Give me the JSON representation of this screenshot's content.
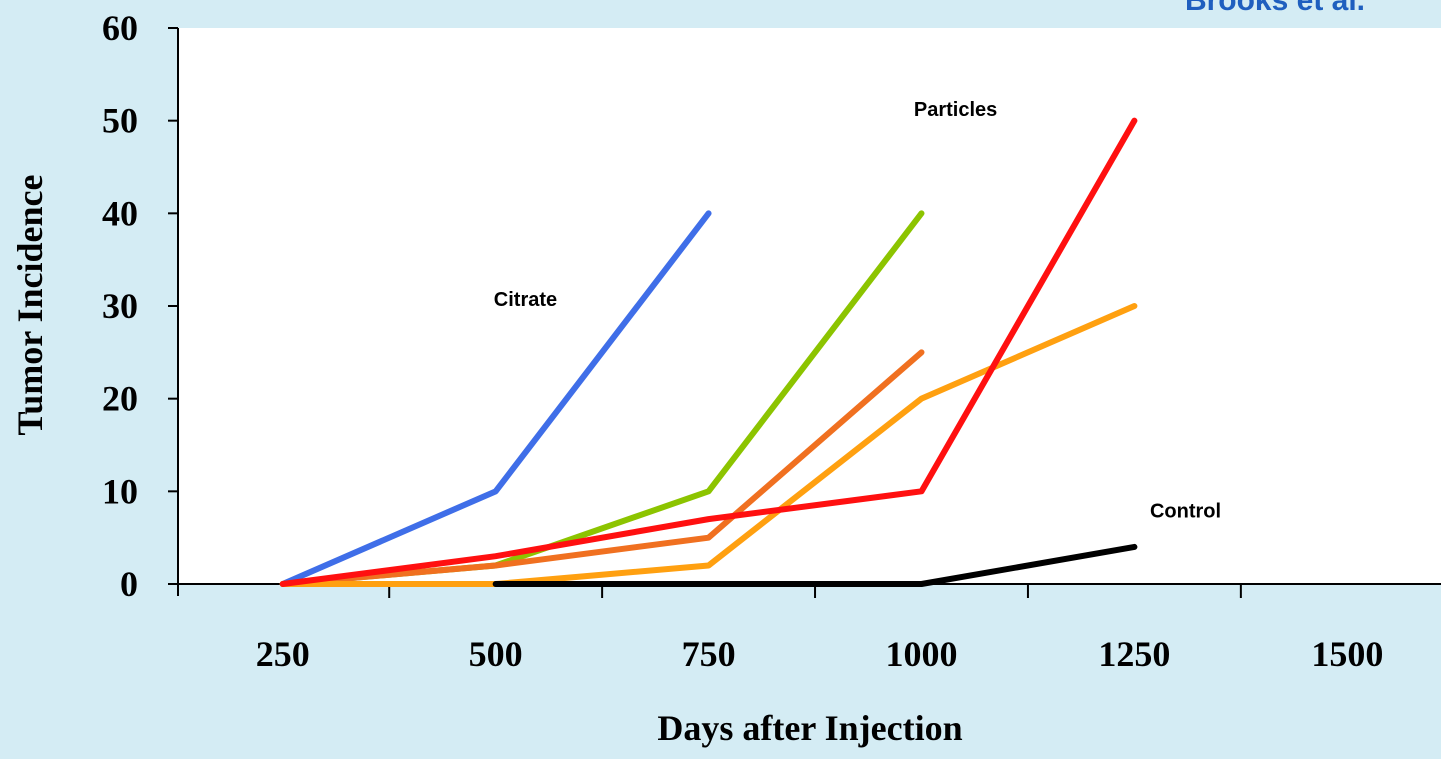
{
  "chart_data": {
    "type": "line",
    "source": "Brooks et al.",
    "xlabel": "Days after Injection",
    "ylabel": "Tumor Incidence",
    "annotations": [
      {
        "text": "Citrate",
        "x": 535,
        "y": 30
      },
      {
        "text": "Particles",
        "x": 1040,
        "y": 50.5
      },
      {
        "text": "Control",
        "x": 1310,
        "y": 7.2
      }
    ],
    "xlim": [
      127,
      1610
    ],
    "ylim": [
      0,
      60
    ],
    "xticks": [
      250,
      500,
      750,
      1000,
      1250,
      1500
    ],
    "x_minor_ticks": [
      375,
      625,
      875,
      1125,
      1375
    ],
    "yticks": [
      0,
      10,
      20,
      30,
      40,
      50,
      60
    ],
    "series": [
      {
        "color": "#3f6ee8",
        "x": [
          250,
          500,
          750
        ],
        "values": [
          0,
          10,
          40
        ]
      },
      {
        "color": "#8cc400",
        "x": [
          250,
          500,
          750,
          1000
        ],
        "values": [
          0,
          2,
          10,
          40
        ]
      },
      {
        "color": "#f07020",
        "x": [
          250,
          500,
          750,
          1000
        ],
        "values": [
          0,
          2,
          5,
          25
        ]
      },
      {
        "color": "#ffa010",
        "x": [
          250,
          500,
          750,
          1000,
          1250
        ],
        "values": [
          0,
          0,
          2,
          20,
          30
        ]
      },
      {
        "color": "#000000",
        "x": [
          500,
          1000,
          1250
        ],
        "values": [
          0,
          0,
          4
        ]
      },
      {
        "color": "#ff1010",
        "x": [
          250,
          375,
          500,
          750,
          1000,
          1250
        ],
        "values": [
          0,
          1.5,
          3,
          7,
          10,
          50
        ]
      }
    ]
  }
}
